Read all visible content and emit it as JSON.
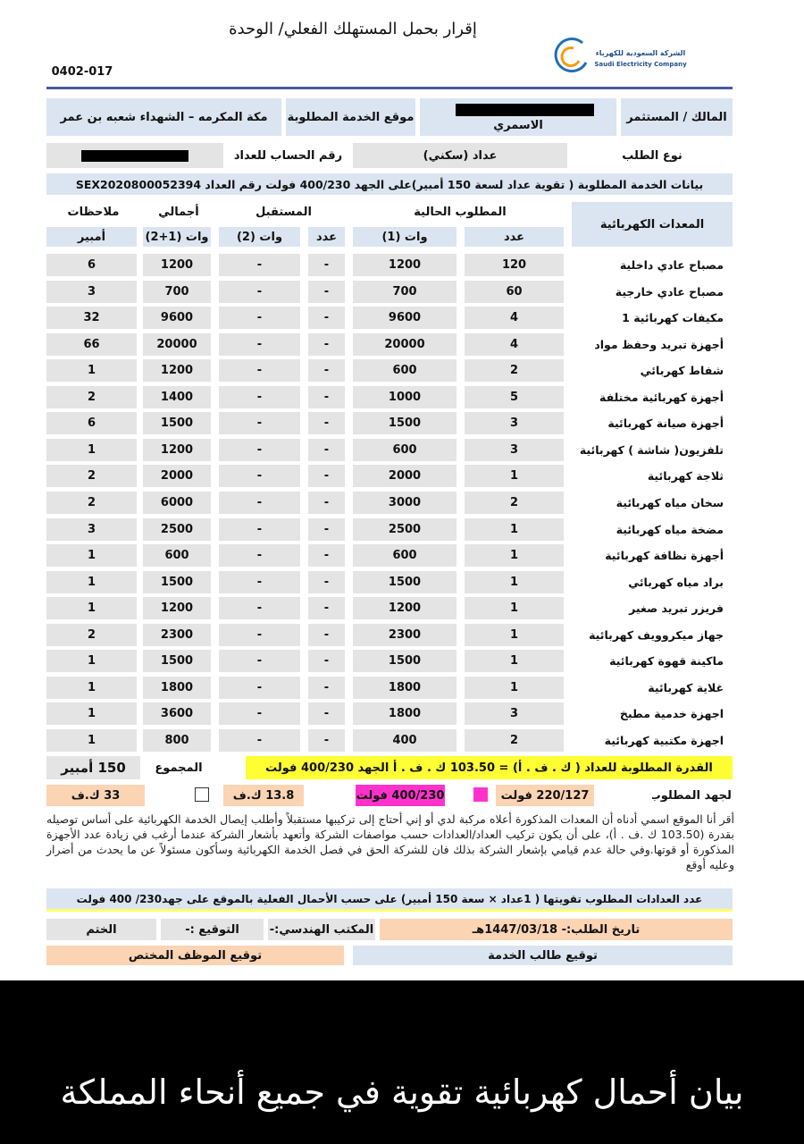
{
  "header": {
    "title": "إقرار بحمل المستهلك  الفعلي/ الوحدة",
    "form_code": "0402-017",
    "company_ar": "الشركة السعودية للكهرباء",
    "company_en": "Saudi Electricity Company"
  },
  "info": {
    "owner_label": "المالك / المستثمر",
    "owner_name": "الاسمري",
    "location_label": "موقع الخدمة المطلوبة",
    "location": "مكة المكرمه – الشهداء شعبه بن عمر",
    "request_type_label": "نوع الطلب",
    "request_type": "عداد (سكني)",
    "account_label": "رقم الحساب للعداد"
  },
  "service_line": "بيانات الخدمة المطلوبة ( تقوية عداد لسعة 150 أمبير)على الجهد 400/230 فولت رقم العداد SEX2020800052394",
  "table": {
    "headers": [
      "المعدات الكهربائية",
      "المطلوب الحالية",
      "المستقبل",
      "أجمالي",
      "ملاحظات"
    ],
    "subheaders": [
      "عدد",
      "وات (1)",
      "عدد",
      "وات (2)",
      "وات (1+2)",
      "أمبير"
    ],
    "rows": [
      [
        "مصباح عادي داخلية",
        120,
        1200,
        "-",
        "-",
        1200,
        6
      ],
      [
        "مصباح عادي خارجية",
        60,
        700,
        "-",
        "-",
        700,
        3
      ],
      [
        "مكيفات كهربائية 1",
        4,
        9600,
        "-",
        "-",
        9600,
        32
      ],
      [
        "أجهزة تبريد وحفظ مواد",
        4,
        20000,
        "-",
        "-",
        20000,
        66
      ],
      [
        "شفاط كهربائي",
        2,
        600,
        "-",
        "-",
        1200,
        1
      ],
      [
        "أجهزة كهربائية مختلفة",
        5,
        1000,
        "-",
        "-",
        1400,
        2
      ],
      [
        "أجهزة صيانة كهربائية",
        3,
        1500,
        "-",
        "-",
        1500,
        6
      ],
      [
        "تلفزيون( شاشة ) كهربائية",
        3,
        600,
        "-",
        "-",
        1200,
        1
      ],
      [
        "ثلاجة كهربائية",
        1,
        2000,
        "-",
        "-",
        2000,
        2
      ],
      [
        "سخان مياه كهربائية",
        2,
        3000,
        "-",
        "-",
        6000,
        2
      ],
      [
        "مضخة مياه كهربائية",
        1,
        2500,
        "-",
        "-",
        2500,
        3
      ],
      [
        "أجهزة نظافة كهربائية",
        1,
        600,
        "-",
        "-",
        600,
        1
      ],
      [
        "براد مياه كهربائي",
        1,
        1500,
        "-",
        "-",
        1500,
        1
      ],
      [
        "فريزر تبريد صغير",
        1,
        1200,
        "-",
        "-",
        1200,
        1
      ],
      [
        "جهاز ميكروويف كهربائية",
        1,
        2300,
        "-",
        "-",
        2300,
        2
      ],
      [
        "ماكينة قهوة كهربائية",
        1,
        1500,
        "-",
        "-",
        1500,
        1
      ],
      [
        "غلاية كهربائية",
        1,
        1800,
        "-",
        "-",
        1800,
        1
      ],
      [
        "اجهزة خدمية مطبخ",
        3,
        1800,
        "-",
        "-",
        3600,
        1
      ],
      [
        "اجهزة مكتبية كهربائية",
        2,
        400,
        "-",
        "-",
        800,
        1
      ]
    ]
  },
  "summary": {
    "capacity": "القدرة المطلوبة للعداد ( ك . ف . أ) = 103.50  ك . ف . أ الجهد 400/230 فولت",
    "total_label": "المجموع",
    "total": "150 أمبير"
  },
  "voltage": {
    "label": "الجهد المطلوب",
    "options": [
      "220/127 فولت",
      "400/230 فولت",
      "13.8 ك.ف",
      "33 ك.ف"
    ]
  },
  "declaration": "أقر أنا الموقع اسمي أدناه أن المعدات المذكورة أعلاه مركبة لدي أو إني أحتاج إلى تركيبها مستقبلاً وأطلب إيصال الخدمة الكهربائية على أساس توصيله بقدرة (103.50 ك .ف . أ)، على أن يكون تركيب العداد/العدادات حسب مواصفات الشركة وأتعهد بأشعار الشركة عندما أرغب في زيادة عدد الأجهزة المذكورة أو قوتها.وفي حالة عدم قيامي بإشعار الشركة بذلك فان للشركة الحق في فصل الخدمة الكهربائية وسأكون مسئولاً عن ما يحدث من أضرار وعليه أوقع",
  "meters_line": "عدد العدادات المطلوب تقويتها ( 1عداد × سعة 150 أمبير) على حسب الأحمال الفعلية بالموقع على جهد230/ 400 فولت",
  "signature": {
    "date": "تاريخ الطلب:- 1447/03/18هـ",
    "office": "المكتب الهندسي:-",
    "sign": "التوقيع :-",
    "stamp": "الختم",
    "applicant": "توقيع طالب الخدمة",
    "employee": "توقيع الموظف المختص"
  },
  "caption": "بيان أحمال كهربائية تقوية في جميع أنحاء المملكة"
}
